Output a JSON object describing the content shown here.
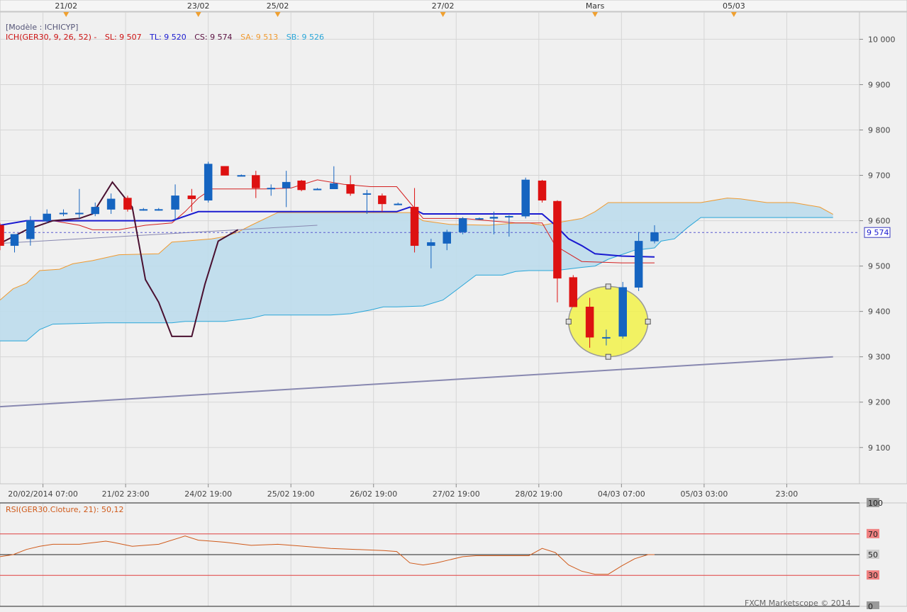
{
  "top_axis": {
    "markers": [
      {
        "label": "21/02",
        "x": 10
      },
      {
        "label": "23/02",
        "x": 30
      },
      {
        "label": "25/02",
        "x": 42
      },
      {
        "label": "27/02",
        "x": 67
      },
      {
        "label": "Mars",
        "x": 90
      },
      {
        "label": "05/03",
        "x": 111
      }
    ]
  },
  "legend": {
    "model": "[Modèle : ICHICYP]",
    "ich": "ICH(GER30, 9, 26, 52) -",
    "sl": "SL: 9 507",
    "tl": "TL: 9 520",
    "cs": "CS: 9 574",
    "sa": "SA: 9 513",
    "sb": "SB: 9 526"
  },
  "price_label": "9 574",
  "watermark": "FXCM Marketscope © 2014",
  "colors": {
    "bull": "#1564c0",
    "bear": "#dd1111",
    "kijun": "#1a1ad0",
    "tenkan": "#d42020",
    "senkou_a": "#f09a30",
    "senkou_b": "#2aa6d8",
    "cloud": "#bcdcec",
    "chikou": "#4a1030",
    "rsi": "#d05a1a",
    "trendline": "#8888b0",
    "highlight": "#f2f24a"
  },
  "chart_data": [
    {
      "type": "candlestick",
      "title": "",
      "symbol": "GER30",
      "ylim": [
        9020,
        10060
      ],
      "y_ticks": [
        10000,
        9900,
        9800,
        9700,
        9600,
        9500,
        9400,
        9300,
        9200,
        9100
      ],
      "y_tick_labels": [
        "10 000",
        "9 900",
        "9 800",
        "9 700",
        "9 600",
        "9 500",
        "9 400",
        "9 300",
        "9 200",
        "9 100"
      ],
      "x_range": [
        0,
        130
      ],
      "x_tick_labels": [
        {
          "x": 6.5,
          "label": "20/02/2014 07:00"
        },
        {
          "x": 19,
          "label": "21/02 23:00"
        },
        {
          "x": 31.5,
          "label": "24/02 19:00"
        },
        {
          "x": 44,
          "label": "25/02 19:00"
        },
        {
          "x": 56.5,
          "label": "26/02 19:00"
        },
        {
          "x": 69,
          "label": "27/02 19:00"
        },
        {
          "x": 81.5,
          "label": "28/02 19:00"
        },
        {
          "x": 94,
          "label": "04/03 07:00"
        },
        {
          "x": 106.5,
          "label": "05/03 03:00"
        },
        {
          "x": 119,
          "label": "23:00"
        }
      ],
      "candles": [
        {
          "x": 0,
          "o": 9590,
          "h": 9595,
          "l": 9535,
          "c": 9545
        },
        {
          "x": 2.2,
          "o": 9545,
          "h": 9570,
          "l": 9530,
          "c": 9570
        },
        {
          "x": 4.6,
          "o": 9560,
          "h": 9610,
          "l": 9545,
          "c": 9600
        },
        {
          "x": 7.1,
          "o": 9600,
          "h": 9625,
          "l": 9595,
          "c": 9615
        },
        {
          "x": 9.6,
          "o": 9617,
          "h": 9625,
          "l": 9610,
          "c": 9617
        },
        {
          "x": 12,
          "o": 9617,
          "h": 9670,
          "l": 9605,
          "c": 9617
        },
        {
          "x": 14.4,
          "o": 9615,
          "h": 9640,
          "l": 9610,
          "c": 9630
        },
        {
          "x": 16.8,
          "o": 9625,
          "h": 9660,
          "l": 9615,
          "c": 9648
        },
        {
          "x": 19.3,
          "o": 9650,
          "h": 9655,
          "l": 9620,
          "c": 9625
        },
        {
          "x": 21.7,
          "o": 9625,
          "h": 9628,
          "l": 9622,
          "c": 9625
        },
        {
          "x": 24,
          "o": 9625,
          "h": 9628,
          "l": 9622,
          "c": 9625
        },
        {
          "x": 26.5,
          "o": 9625,
          "h": 9680,
          "l": 9600,
          "c": 9655
        },
        {
          "x": 29,
          "o": 9655,
          "h": 9670,
          "l": 9620,
          "c": 9648
        },
        {
          "x": 31.5,
          "o": 9645,
          "h": 9730,
          "l": 9640,
          "c": 9725
        },
        {
          "x": 34,
          "o": 9720,
          "h": 9720,
          "l": 9700,
          "c": 9700
        },
        {
          "x": 36.5,
          "o": 9700,
          "h": 9702,
          "l": 9698,
          "c": 9700
        },
        {
          "x": 38.7,
          "o": 9700,
          "h": 9710,
          "l": 9650,
          "c": 9672
        },
        {
          "x": 41,
          "o": 9672,
          "h": 9680,
          "l": 9655,
          "c": 9672
        },
        {
          "x": 43.3,
          "o": 9672,
          "h": 9710,
          "l": 9630,
          "c": 9685
        },
        {
          "x": 45.6,
          "o": 9688,
          "h": 9690,
          "l": 9665,
          "c": 9668
        },
        {
          "x": 48,
          "o": 9670,
          "h": 9672,
          "l": 9668,
          "c": 9670
        },
        {
          "x": 50.5,
          "o": 9670,
          "h": 9720,
          "l": 9670,
          "c": 9682
        },
        {
          "x": 53,
          "o": 9680,
          "h": 9700,
          "l": 9655,
          "c": 9660
        },
        {
          "x": 55.5,
          "o": 9660,
          "h": 9668,
          "l": 9615,
          "c": 9660
        },
        {
          "x": 57.8,
          "o": 9655,
          "h": 9660,
          "l": 9620,
          "c": 9637
        },
        {
          "x": 60.2,
          "o": 9637,
          "h": 9640,
          "l": 9635,
          "c": 9637
        },
        {
          "x": 62.7,
          "o": 9630,
          "h": 9672,
          "l": 9530,
          "c": 9545
        },
        {
          "x": 65.2,
          "o": 9545,
          "h": 9560,
          "l": 9495,
          "c": 9552
        },
        {
          "x": 67.6,
          "o": 9550,
          "h": 9580,
          "l": 9535,
          "c": 9575
        },
        {
          "x": 70,
          "o": 9575,
          "h": 9608,
          "l": 9570,
          "c": 9605
        },
        {
          "x": 72.5,
          "o": 9605,
          "h": 9607,
          "l": 9603,
          "c": 9605
        },
        {
          "x": 74.7,
          "o": 9605,
          "h": 9620,
          "l": 9570,
          "c": 9608
        },
        {
          "x": 77,
          "o": 9608,
          "h": 9612,
          "l": 9565,
          "c": 9610
        },
        {
          "x": 79.5,
          "o": 9610,
          "h": 9695,
          "l": 9605,
          "c": 9690
        },
        {
          "x": 82,
          "o": 9688,
          "h": 9690,
          "l": 9640,
          "c": 9645
        },
        {
          "x": 84.3,
          "o": 9643,
          "h": 9645,
          "l": 9420,
          "c": 9473
        },
        {
          "x": 86.7,
          "o": 9475,
          "h": 9480,
          "l": 9410,
          "c": 9410
        },
        {
          "x": 89.2,
          "o": 9410,
          "h": 9430,
          "l": 9320,
          "c": 9343
        },
        {
          "x": 91.7,
          "o": 9343,
          "h": 9360,
          "l": 9325,
          "c": 9343
        },
        {
          "x": 94.2,
          "o": 9345,
          "h": 9465,
          "l": 9340,
          "c": 9453
        },
        {
          "x": 96.6,
          "o": 9453,
          "h": 9575,
          "l": 9445,
          "c": 9555
        },
        {
          "x": 99,
          "o": 9555,
          "h": 9590,
          "l": 9550,
          "c": 9574
        }
      ],
      "ichimoku": {
        "tenkan_sen": [
          [
            0,
            9590
          ],
          [
            4,
            9600
          ],
          [
            8,
            9600
          ],
          [
            12,
            9590
          ],
          [
            14,
            9580
          ],
          [
            18,
            9580
          ],
          [
            22,
            9590
          ],
          [
            26,
            9595
          ],
          [
            28,
            9620
          ],
          [
            30,
            9650
          ],
          [
            32,
            9670
          ],
          [
            40,
            9670
          ],
          [
            44,
            9672
          ],
          [
            48,
            9690
          ],
          [
            52,
            9680
          ],
          [
            56,
            9675
          ],
          [
            58,
            9675
          ],
          [
            60,
            9675
          ],
          [
            62,
            9640
          ],
          [
            64,
            9605
          ],
          [
            70,
            9605
          ],
          [
            74,
            9600
          ],
          [
            78,
            9595
          ],
          [
            82,
            9595
          ],
          [
            84,
            9545
          ],
          [
            88,
            9510
          ],
          [
            94,
            9507
          ],
          [
            99,
            9507
          ]
        ],
        "kijun_sen": [
          [
            0,
            9590
          ],
          [
            4,
            9600
          ],
          [
            22,
            9600
          ],
          [
            26,
            9600
          ],
          [
            28,
            9610
          ],
          [
            30,
            9620
          ],
          [
            42,
            9620
          ],
          [
            60,
            9620
          ],
          [
            62,
            9630
          ],
          [
            64,
            9615
          ],
          [
            74,
            9615
          ],
          [
            82,
            9615
          ],
          [
            84,
            9590
          ],
          [
            86,
            9560
          ],
          [
            88,
            9545
          ],
          [
            90,
            9527
          ],
          [
            94,
            9522
          ],
          [
            99,
            9520
          ]
        ],
        "senkou_span_a": [
          [
            0,
            9425
          ],
          [
            2,
            9450
          ],
          [
            4,
            9462
          ],
          [
            6,
            9490
          ],
          [
            9,
            9493
          ],
          [
            11,
            9505
          ],
          [
            14,
            9512
          ],
          [
            18,
            9525
          ],
          [
            24,
            9527
          ],
          [
            26,
            9553
          ],
          [
            28,
            9555
          ],
          [
            32,
            9560
          ],
          [
            34,
            9565
          ],
          [
            36,
            9575
          ],
          [
            38,
            9590
          ],
          [
            42,
            9618
          ],
          [
            62,
            9618
          ],
          [
            64,
            9600
          ],
          [
            68,
            9592
          ],
          [
            74,
            9590
          ],
          [
            78,
            9595
          ],
          [
            80,
            9595
          ],
          [
            82,
            9590
          ],
          [
            84,
            9595
          ],
          [
            86,
            9600
          ],
          [
            88,
            9605
          ],
          [
            90,
            9620
          ],
          [
            92,
            9640
          ],
          [
            96,
            9640
          ],
          [
            106,
            9640
          ],
          [
            110,
            9650
          ],
          [
            112,
            9648
          ],
          [
            116,
            9640
          ],
          [
            120,
            9640
          ],
          [
            124,
            9630
          ],
          [
            126,
            9614
          ]
        ],
        "senkou_span_b": [
          [
            0,
            9335
          ],
          [
            4,
            9335
          ],
          [
            6,
            9360
          ],
          [
            8,
            9372
          ],
          [
            16,
            9375
          ],
          [
            26,
            9375
          ],
          [
            28,
            9378
          ],
          [
            34,
            9378
          ],
          [
            38,
            9385
          ],
          [
            40,
            9392
          ],
          [
            44,
            9392
          ],
          [
            50,
            9392
          ],
          [
            53,
            9395
          ],
          [
            56,
            9403
          ],
          [
            58,
            9410
          ],
          [
            60,
            9410
          ],
          [
            64,
            9412
          ],
          [
            67,
            9425
          ],
          [
            69,
            9447
          ],
          [
            72,
            9480
          ],
          [
            74,
            9480
          ],
          [
            76,
            9480
          ],
          [
            78,
            9488
          ],
          [
            80,
            9490
          ],
          [
            84,
            9490
          ],
          [
            88,
            9497
          ],
          [
            90,
            9500
          ],
          [
            92,
            9515
          ],
          [
            96,
            9535
          ],
          [
            99,
            9540
          ],
          [
            100,
            9555
          ],
          [
            102,
            9560
          ],
          [
            104,
            9585
          ],
          [
            106,
            9607
          ],
          [
            112,
            9607
          ],
          [
            126,
            9607
          ]
        ],
        "chikou_span": [
          [
            0,
            9550
          ],
          [
            4,
            9580
          ],
          [
            8,
            9600
          ],
          [
            12,
            9605
          ],
          [
            14,
            9615
          ],
          [
            17,
            9685
          ],
          [
            20,
            9630
          ],
          [
            22,
            9470
          ],
          [
            24,
            9420
          ],
          [
            26,
            9345
          ],
          [
            29,
            9345
          ],
          [
            31,
            9460
          ],
          [
            33,
            9555
          ],
          [
            36,
            9580
          ]
        ]
      },
      "current_price": 9574,
      "trendlines": [
        {
          "from": [
            0,
            9190
          ],
          "to": [
            126,
            9300
          ]
        },
        {
          "from": [
            0,
            9550
          ],
          "to": [
            48,
            9590
          ]
        }
      ],
      "highlight_ellipse": {
        "x_range": [
          86,
          98
        ],
        "y_range": [
          9300,
          9455
        ]
      }
    },
    {
      "type": "line",
      "title": "RSI(GER30.Cloture, 21): 50,12",
      "ylim": [
        0,
        100
      ],
      "levels": [
        100,
        70,
        50,
        30,
        0
      ],
      "level_labels": [
        "100",
        "70",
        "50",
        "30",
        "0"
      ],
      "series": [
        {
          "x": [
            0,
            2,
            4,
            6,
            8,
            12,
            16,
            17,
            20,
            24,
            28,
            30,
            32,
            34,
            38,
            42,
            46,
            50,
            54,
            58,
            60,
            62,
            64,
            66,
            68,
            70,
            72,
            74,
            76,
            78,
            80,
            82,
            84,
            86,
            88,
            90,
            92,
            94,
            96,
            98,
            99
          ],
          "y": [
            48,
            50,
            55,
            58,
            60,
            60,
            63,
            62,
            58,
            60,
            68,
            64,
            63,
            62,
            59,
            60,
            58,
            56,
            55,
            54,
            53,
            42,
            40,
            42,
            45,
            48,
            49,
            49,
            49,
            49,
            49,
            56,
            52,
            40,
            34,
            31,
            31,
            39,
            46,
            50,
            50
          ]
        }
      ]
    }
  ]
}
